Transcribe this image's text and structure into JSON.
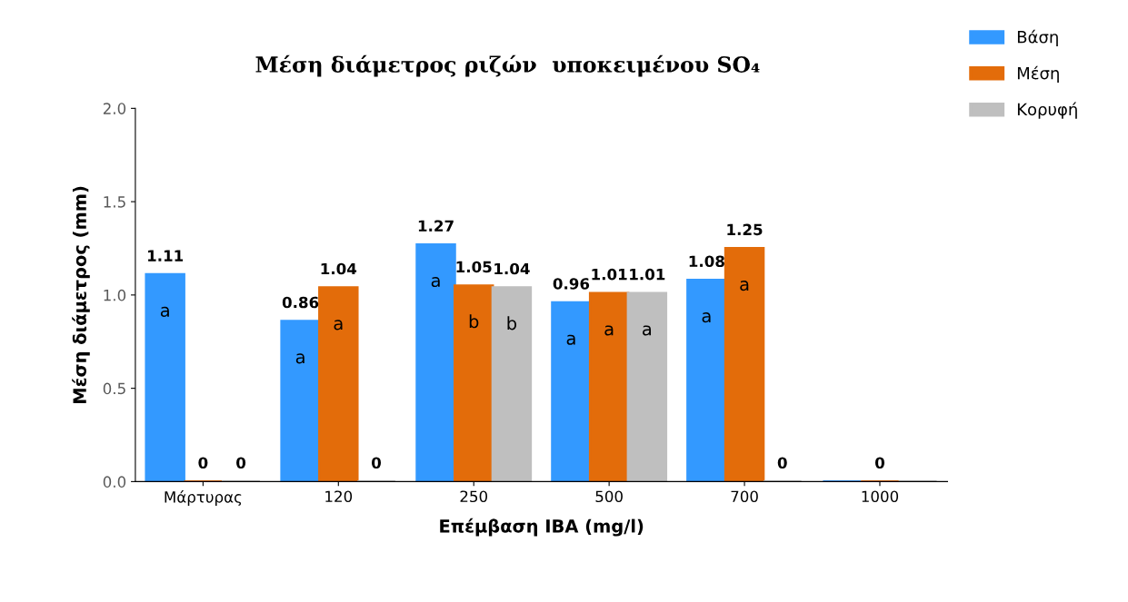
{
  "chart_data": {
    "type": "bar",
    "title": "Μέση διάμετρος ριζών  υποκειμένου SO₄",
    "xlabel": "Επέμβαση IBA (mg/l)",
    "ylabel": "Μέση διάμετρος (mm)",
    "categories": [
      "Μάρτυρας",
      "120",
      "250",
      "500",
      "700",
      "1000"
    ],
    "series": [
      {
        "name": "Βάση",
        "color": "#3399ff",
        "values": [
          1.11,
          0.86,
          1.27,
          0.96,
          1.08,
          0
        ],
        "value_labels": [
          "1.11",
          "0.86",
          "1.27",
          "0.96",
          "1.08",
          null
        ]
      },
      {
        "name": "Μέση",
        "color": "#e36c0a",
        "values": [
          0,
          1.04,
          1.05,
          1.01,
          1.25,
          0
        ],
        "value_labels": [
          "0",
          "1.04",
          "1.05",
          "1.01",
          "1.25",
          "0"
        ]
      },
      {
        "name": "Κορυφή",
        "color": "#bfbfbf",
        "values": [
          0,
          0,
          1.04,
          1.01,
          0,
          0
        ],
        "value_labels": [
          "0",
          "0",
          "1.04",
          "1.01",
          "0",
          null
        ]
      }
    ],
    "annotations": [
      "a",
      "a",
      "a",
      "a",
      "b",
      "b",
      "a",
      "a",
      "a",
      "a",
      "a"
    ],
    "ylim": [
      0,
      2
    ],
    "yticks": [
      {
        "value": 0,
        "label": "0.0"
      },
      {
        "value": 0.5,
        "label": "0.5"
      },
      {
        "value": 1,
        "label": "1.0"
      },
      {
        "value": 1.5,
        "label": "1.5"
      },
      {
        "value": 2,
        "label": "2.0"
      }
    ],
    "grid": false,
    "legend": "top right"
  }
}
